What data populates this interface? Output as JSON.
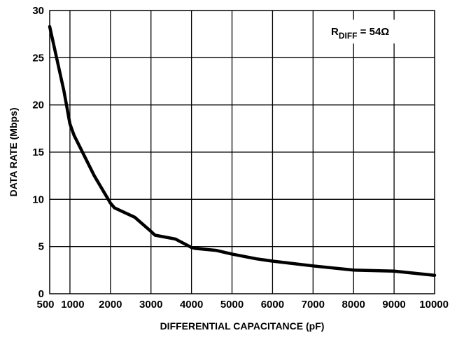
{
  "chart_data": {
    "type": "line",
    "xlabel": "DIFFERENTIAL CAPACITANCE (pF)",
    "ylabel": "DATA RATE (Mbps)",
    "xlim": [
      500,
      10000
    ],
    "ylim": [
      0,
      30
    ],
    "grid": true,
    "x_ticks": [
      500,
      1000,
      2000,
      3000,
      4000,
      5000,
      6000,
      7000,
      8000,
      9000,
      10000
    ],
    "y_ticks": [
      0,
      5,
      10,
      15,
      20,
      25,
      30
    ],
    "x_tick_labels": [
      "500",
      "1000",
      "2000",
      "3000",
      "4000",
      "5000",
      "6000",
      "7000",
      "8000",
      "9000",
      "10000"
    ],
    "y_tick_labels": [
      "0",
      "5",
      "10",
      "15",
      "20",
      "25",
      "30"
    ],
    "annotation": {
      "main": "R",
      "subscript": "DIFF",
      "value": " = 54Ω",
      "position": "top-right"
    },
    "series": [
      {
        "color": "#000000",
        "x": [
          500,
          850,
          1000,
          1100,
          1600,
          2000,
          2100,
          2600,
          3000,
          3100,
          3600,
          4000,
          4100,
          4600,
          5000,
          5600,
          6000,
          7000,
          8000,
          9000,
          10000
        ],
        "y": [
          28.3,
          21.5,
          18.0,
          16.8,
          12.5,
          9.6,
          9.1,
          8.1,
          6.6,
          6.2,
          5.8,
          4.9,
          4.8,
          4.6,
          4.2,
          3.7,
          3.45,
          2.95,
          2.5,
          2.4,
          1.95
        ]
      }
    ]
  }
}
